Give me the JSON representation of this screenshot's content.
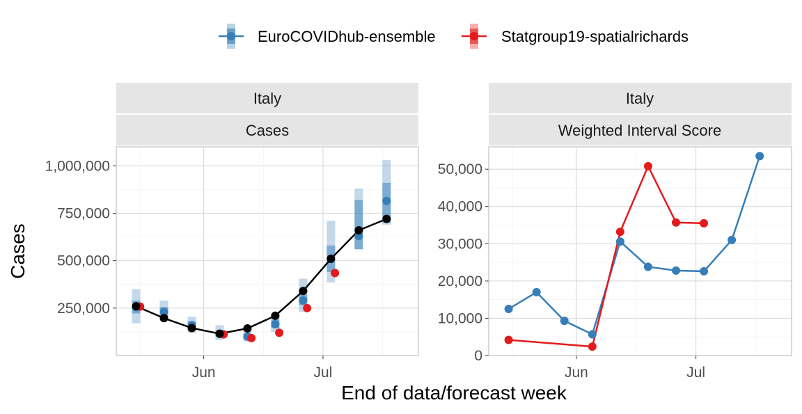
{
  "legend": {
    "series": [
      {
        "name": "EuroCOVIDhub-ensemble",
        "color": "#377eb8"
      },
      {
        "name": "Statgroup19-spatialrichards",
        "color": "#e41a1c"
      }
    ]
  },
  "axes": {
    "xlabel": "End of data/forecast week",
    "ylabel": "Cases"
  },
  "colors": {
    "ensemble": "#377eb8",
    "statgroup": "#e41a1c",
    "observed": "#000000",
    "strip": "#e5e5e5"
  },
  "chart_data": [
    {
      "type": "line",
      "facet": {
        "location": "Italy",
        "panel": "Cases"
      },
      "x_type": "date",
      "xlim": [
        "2021-05-10",
        "2021-07-25"
      ],
      "x_ticks": [
        {
          "date": "2021-06-01",
          "label": "Jun"
        },
        {
          "date": "2021-07-01",
          "label": "Jul"
        }
      ],
      "ylim": [
        0,
        1100000
      ],
      "y_ticks": [
        {
          "value": 250000,
          "label": "250,000"
        },
        {
          "value": 500000,
          "label": "500,000"
        },
        {
          "value": 750000,
          "label": "750,000"
        },
        {
          "value": 1000000,
          "label": "1,000,000"
        }
      ],
      "observed": {
        "x": [
          "2021-05-15",
          "2021-05-22",
          "2021-05-29",
          "2021-06-05",
          "2021-06-12",
          "2021-06-19",
          "2021-06-26",
          "2021-07-03",
          "2021-07-10",
          "2021-07-17"
        ],
        "y": [
          260000,
          197000,
          145000,
          115000,
          143000,
          210000,
          340000,
          510000,
          660000,
          720000
        ]
      },
      "series": [
        {
          "name": "EuroCOVIDhub-ensemble",
          "x": [
            "2021-05-15",
            "2021-05-22",
            "2021-05-29",
            "2021-06-05",
            "2021-06-12",
            "2021-06-19",
            "2021-06-26",
            "2021-07-03",
            "2021-07-10",
            "2021-07-17"
          ],
          "y": [
            255000,
            230000,
            160000,
            115000,
            100000,
            165000,
            290000,
            510000,
            630000,
            815000
          ],
          "interval_50": [
            [
              222000,
              290000
            ],
            [
              205000,
              255000
            ],
            [
              140000,
              180000
            ],
            [
              100000,
              130000
            ],
            [
              88000,
              112000
            ],
            [
              145000,
              190000
            ],
            [
              265000,
              320000
            ],
            [
              440000,
              580000
            ],
            [
              560000,
              820000
            ],
            [
              700000,
              910000
            ]
          ],
          "interval_90": [
            [
              170000,
              350000
            ],
            [
              180000,
              290000
            ],
            [
              120000,
              205000
            ],
            [
              82000,
              160000
            ],
            [
              75000,
              128000
            ],
            [
              125000,
              215000
            ],
            [
              230000,
              405000
            ],
            [
              385000,
              710000
            ],
            [
              560000,
              880000
            ],
            [
              690000,
              1030000
            ]
          ]
        },
        {
          "name": "Statgroup19-spatialrichards",
          "x": [
            "2021-05-16",
            "2021-06-06",
            "2021-06-13",
            "2021-06-20",
            "2021-06-27",
            "2021-07-04"
          ],
          "y": [
            258000,
            112000,
            92000,
            120000,
            250000,
            435000
          ]
        }
      ]
    },
    {
      "type": "line",
      "facet": {
        "location": "Italy",
        "panel": "Weighted Interval Score"
      },
      "x_type": "date",
      "xlim": [
        "2021-05-10",
        "2021-07-25"
      ],
      "x_ticks": [
        {
          "date": "2021-06-01",
          "label": "Jun"
        },
        {
          "date": "2021-07-01",
          "label": "Jul"
        }
      ],
      "ylim": [
        0,
        56000
      ],
      "y_ticks": [
        {
          "value": 0,
          "label": "0"
        },
        {
          "value": 10000,
          "label": "10,000"
        },
        {
          "value": 20000,
          "label": "20,000"
        },
        {
          "value": 30000,
          "label": "30,000"
        },
        {
          "value": 40000,
          "label": "40,000"
        },
        {
          "value": 50000,
          "label": "50,000"
        }
      ],
      "series": [
        {
          "name": "EuroCOVIDhub-ensemble",
          "x": [
            "2021-05-15",
            "2021-05-22",
            "2021-05-29",
            "2021-06-05",
            "2021-06-12",
            "2021-06-19",
            "2021-06-26",
            "2021-07-03",
            "2021-07-10",
            "2021-07-17"
          ],
          "y": [
            12500,
            17000,
            9300,
            5700,
            30600,
            23800,
            22800,
            22600,
            31000,
            53500
          ]
        },
        {
          "name": "Statgroup19-spatialrichards",
          "x": [
            "2021-05-15",
            "2021-06-05",
            "2021-06-12",
            "2021-06-19",
            "2021-06-26",
            "2021-07-03"
          ],
          "y": [
            4200,
            2400,
            33200,
            50800,
            35700,
            35500
          ]
        }
      ]
    }
  ]
}
